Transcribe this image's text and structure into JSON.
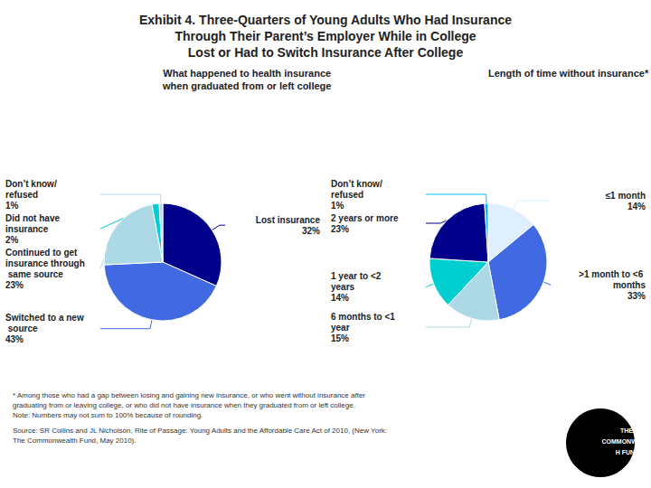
{
  "chart_data": [
    {
      "type": "pie",
      "title": "Exhibit 4. Three-Quarters of Young Adults Who Had Insurance\nThrough Their Parent’s Employer While in College\nLost or Had to Switch Insurance After College",
      "subtitle": "What happened to health insurance\nwhen graduated from or left college",
      "categories": [
        "Lost insurance",
        "Switched to a new source",
        "Continued to get insurance through same source",
        "Did not have insurance",
        "Don’t know/refused"
      ],
      "values": [
        32,
        43,
        23,
        2,
        1
      ],
      "value_labels": [
        "32%",
        "43%",
        "23%",
        "2%",
        "1%"
      ],
      "colors": [
        "#00008B",
        "#4169E1",
        "#ADD8E6",
        "#00CED1",
        "#B0D8F0"
      ],
      "data_labels": true,
      "annotations": [
        "* Among those who had a gap between losing and gaining new insurance, or who went without insurance after\ngraduating from or leaving college, or who did not have insurance when they graduated from or left college.\nNote: Numbers may not sum to 100% because of rounding.",
        "Source: SR Collins and JL Nicholson, Rite of Passage: Young Adults and the Affordable Care Act of 2010, (New York:\nThe Commonwealth Fund, May 2010).",
        "THE COMMONWEALTH FUND"
      ]
    },
    {
      "type": "pie",
      "subtitle": "Length of time without insurance*",
      "categories": [
        "≤1 month",
        ">1 month to <6 months",
        "6 months to <1 year",
        "1 year to <2 years",
        "2 years or more",
        "Don’t know/refused"
      ],
      "values": [
        14,
        33,
        15,
        14,
        23,
        1
      ],
      "value_labels": [
        "14%",
        "33%",
        "15%",
        "14%",
        "23%",
        "1%"
      ],
      "colors": [
        "#E0EFFF",
        "#4169E1",
        "#ADD8E6",
        "#00CED1",
        "#00008B",
        "#00BFFF"
      ],
      "data_labels": true
    }
  ]
}
